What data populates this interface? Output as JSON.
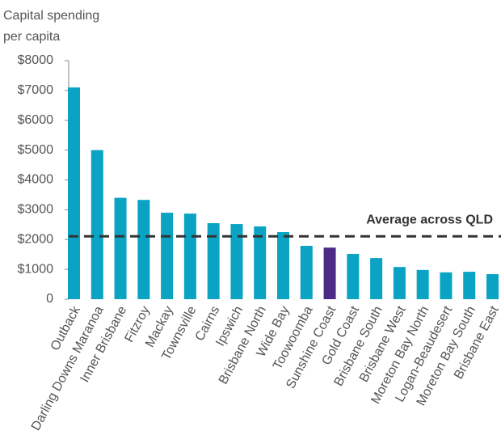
{
  "chart_data": {
    "type": "bar",
    "ylabel": [
      "Capital spending",
      "per capita"
    ],
    "categories": [
      "Outback",
      "Darling Downs Maranoa",
      "Inner Brisbane",
      "Fitzroy",
      "Mackay",
      "Townsville",
      "Cairns",
      "Ipswich",
      "Brisbane North",
      "Wide Bay",
      "Toowoomba",
      "Sunshine Coast",
      "Gold Coast",
      "Brisbane South",
      "Brisbane West",
      "Moreton Bay North",
      "Logan-Beaudesert",
      "Moreton Bay South",
      "Brisbane East"
    ],
    "values": [
      7100,
      5000,
      3400,
      3330,
      2900,
      2870,
      2550,
      2520,
      2440,
      2250,
      1790,
      1730,
      1520,
      1380,
      1080,
      980,
      900,
      920,
      840
    ],
    "colors": [
      "#0aa3c4",
      "#0aa3c4",
      "#0aa3c4",
      "#0aa3c4",
      "#0aa3c4",
      "#0aa3c4",
      "#0aa3c4",
      "#0aa3c4",
      "#0aa3c4",
      "#0aa3c4",
      "#0aa3c4",
      "#4b2a88",
      "#0aa3c4",
      "#0aa3c4",
      "#0aa3c4",
      "#0aa3c4",
      "#0aa3c4",
      "#0aa3c4",
      "#0aa3c4"
    ],
    "ylim": [
      0,
      8000
    ],
    "yticks": [
      0,
      {
        "value": 1000,
        "label": "$1000"
      },
      {
        "value": 2000,
        "label": "$2000"
      },
      {
        "value": 3000,
        "label": "$3000"
      },
      {
        "value": 4000,
        "label": "$4000"
      },
      {
        "value": 5000,
        "label": "$5000"
      },
      {
        "value": 6000,
        "label": "$6000"
      },
      {
        "value": 7000,
        "label": "$7000"
      },
      {
        "value": 8000,
        "label": "$8000"
      }
    ],
    "reference_line": {
      "label": "Average across QLD",
      "value": 2110,
      "color": "#333333"
    }
  }
}
